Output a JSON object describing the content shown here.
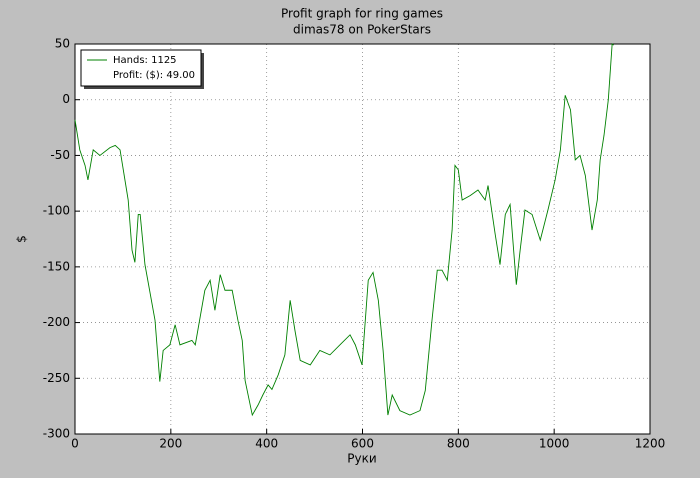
{
  "chart_data": {
    "type": "line",
    "title": "Profit graph for ring games",
    "subtitle": "dimas78 on PokerStars",
    "xlabel": "Руки",
    "ylabel": "$",
    "x": [
      0,
      10,
      21,
      27,
      38,
      52,
      73,
      84,
      94,
      111,
      119,
      125,
      132,
      136,
      146,
      167,
      177,
      184,
      198,
      209,
      219,
      244,
      251,
      271,
      282,
      292,
      303,
      313,
      328,
      340,
      349,
      355,
      370,
      382,
      392,
      403,
      411,
      424,
      438,
      449,
      459,
      470,
      491,
      511,
      532,
      553,
      574,
      585,
      599,
      612,
      622,
      633,
      643,
      653,
      662,
      678,
      699,
      720,
      731,
      745,
      756,
      766,
      777,
      787,
      793,
      800,
      808,
      825,
      841,
      856,
      862,
      877,
      887,
      898,
      908,
      921,
      929,
      939,
      954,
      971,
      987,
      1002,
      1013,
      1023,
      1034,
      1044,
      1054,
      1065,
      1075,
      1079,
      1090,
      1096,
      1104,
      1113,
      1121,
      1124
    ],
    "series": [
      {
        "name": "Hands: 1125",
        "color": "#008000",
        "values": [
          -18,
          -45,
          -59,
          -72,
          -45,
          -50,
          -43,
          -41,
          -45,
          -90,
          -135,
          -146,
          -103,
          -103,
          -148,
          -198,
          -253,
          -225,
          -220,
          -202,
          -220,
          -216,
          -220,
          -171,
          -162,
          -189,
          -157,
          -171,
          -171,
          -198,
          -216,
          -252,
          -283,
          -274,
          -265,
          -256,
          -260,
          -247,
          -229,
          -180,
          -207,
          -234,
          -238,
          -225,
          -229,
          -220,
          -211,
          -220,
          -238,
          -162,
          -155,
          -180,
          -225,
          -283,
          -265,
          -279,
          -283,
          -279,
          -261,
          -198,
          -153,
          -153,
          -162,
          -117,
          -59,
          -63,
          -90,
          -86,
          -81,
          -90,
          -77,
          -121,
          -148,
          -103,
          -94,
          -166,
          -135,
          -99,
          -103,
          -126,
          -99,
          -72,
          -45,
          4,
          -9,
          -54,
          -50,
          -68,
          -103,
          -117,
          -90,
          -54,
          -32,
          0,
          50,
          49
        ]
      }
    ],
    "legend_extra": "Profit: ($): 49.00",
    "legend": "upper left",
    "xlim": [
      0,
      1200
    ],
    "xticks": [
      0,
      200,
      400,
      600,
      800,
      1000,
      1200
    ],
    "ylim": [
      -300,
      50
    ],
    "yticks": [
      -300,
      -250,
      -200,
      -150,
      -100,
      -50,
      0,
      50
    ],
    "grid": true
  }
}
